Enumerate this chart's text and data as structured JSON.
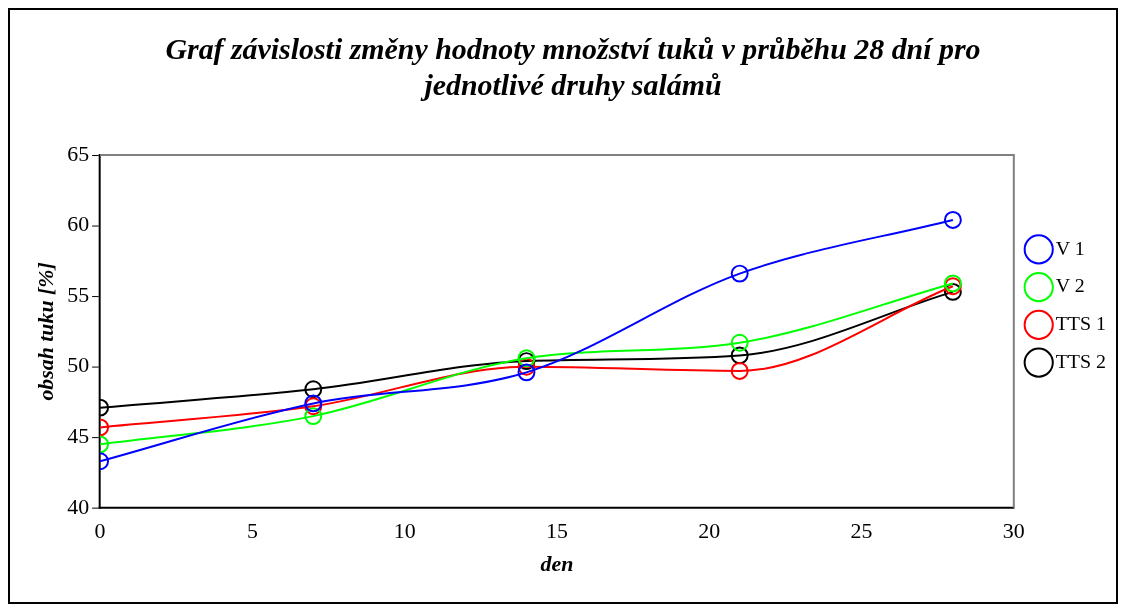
{
  "chart_data": {
    "type": "line",
    "title": "Graf závislosti změny hodnoty množství tuků v průběhu 28 dní pro jednotlivé druhy salámů",
    "xlabel": "den",
    "ylabel": "obsah tuku [%]",
    "x": [
      0,
      7,
      14,
      21,
      28
    ],
    "series": [
      {
        "name": "V 1",
        "color": "#0000ff",
        "values": [
          43.3,
          47.4,
          49.6,
          56.6,
          60.4
        ]
      },
      {
        "name": "V 2",
        "color": "#00ff00",
        "values": [
          44.5,
          46.5,
          50.6,
          51.7,
          55.9
        ]
      },
      {
        "name": "TTS 1",
        "color": "#ff0000",
        "values": [
          45.7,
          47.2,
          50.0,
          49.7,
          55.7
        ]
      },
      {
        "name": "TTS 2",
        "color": "#000000",
        "values": [
          47.1,
          48.4,
          50.4,
          50.8,
          55.3
        ]
      }
    ],
    "xlim": [
      0,
      30
    ],
    "xticks": [
      0,
      5,
      10,
      15,
      20,
      25,
      30
    ],
    "ylim": [
      40,
      65
    ],
    "yticks": [
      40,
      45,
      50,
      55,
      60,
      65
    ],
    "grid": false,
    "legend": "right",
    "marker": "circle",
    "line_style": "solid"
  }
}
